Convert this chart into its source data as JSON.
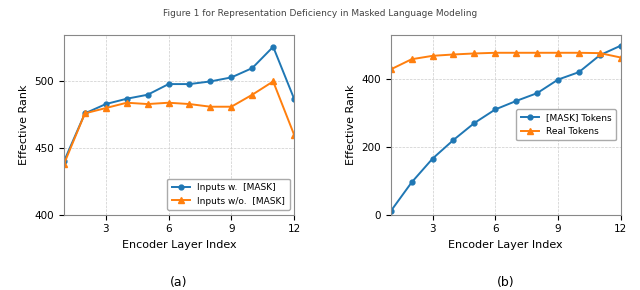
{
  "left": {
    "x": [
      1,
      2,
      3,
      4,
      5,
      6,
      7,
      8,
      9,
      10,
      11,
      12
    ],
    "with_mask": [
      440,
      476,
      483,
      487,
      490,
      498,
      498,
      500,
      503,
      510,
      526,
      487
    ],
    "without_mask": [
      438,
      476,
      480,
      484,
      483,
      484,
      483,
      481,
      481,
      490,
      500,
      460
    ],
    "ylabel": "Effective Rank",
    "xlabel": "Encoder Layer Index",
    "ylim": [
      400,
      535
    ],
    "yticks": [
      400,
      450,
      500
    ],
    "xticks": [
      3,
      6,
      9,
      12
    ],
    "legend1": "Inputs w.  [MASK]",
    "legend2": "Inputs w/o.  [MASK]",
    "label": "(a)"
  },
  "right": {
    "x": [
      1,
      2,
      3,
      4,
      5,
      6,
      7,
      8,
      9,
      10,
      11,
      12
    ],
    "mask_tokens": [
      10,
      95,
      165,
      220,
      270,
      310,
      335,
      358,
      398,
      420,
      470,
      498
    ],
    "real_tokens": [
      428,
      458,
      468,
      472,
      475,
      477,
      477,
      477,
      477,
      477,
      476,
      463
    ],
    "ylabel": "Effective Rank",
    "xlabel": "Encoder Layer Index",
    "ylim": [
      0,
      530
    ],
    "yticks": [
      0,
      200,
      400
    ],
    "xticks": [
      3,
      6,
      9,
      12
    ],
    "legend1": "[MASK] Tokens",
    "legend2": "Real Tokens",
    "label": "(b)"
  },
  "suptitle": "Figure 1 for Representation Deficiency in Masked Language Modeling",
  "blue_color": "#1f77b4",
  "orange_color": "#ff7f0e",
  "plot_bg_color": "#ffffff",
  "fig_bg_color": "#ffffff",
  "grid_color": "#cccccc"
}
